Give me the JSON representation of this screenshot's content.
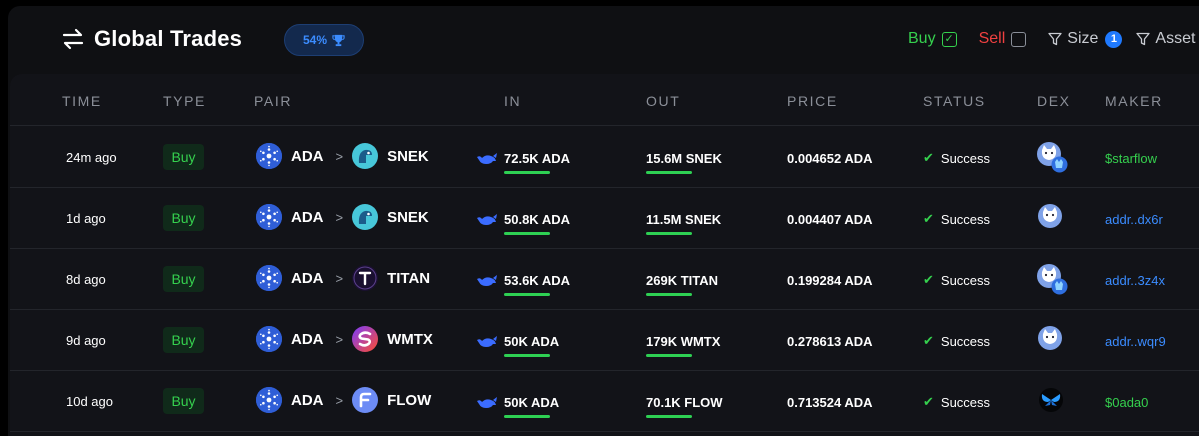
{
  "header": {
    "title": "Global Trades",
    "pill_label": "54%",
    "filters": {
      "buy_label": "Buy",
      "buy_checked": true,
      "sell_label": "Sell",
      "sell_checked": false,
      "size_label": "Size",
      "size_count": "1",
      "asset_label": "Asset"
    }
  },
  "columns": [
    "TIME",
    "TYPE",
    "PAIR",
    "IN",
    "OUT",
    "PRICE",
    "STATUS",
    "DEX",
    "MAKER"
  ],
  "rows": [
    {
      "time": "24m ago",
      "type": "Buy",
      "from": "ADA",
      "to": "SNEK",
      "in": "72.5K ADA",
      "out": "15.6M SNEK",
      "price": "0.004652 ADA",
      "status": "Success",
      "dex": "cat-dex-multi-icon",
      "maker": "$starflow",
      "maker_color": "#35d04e"
    },
    {
      "time": "1d ago",
      "type": "Buy",
      "from": "ADA",
      "to": "SNEK",
      "in": "50.8K ADA",
      "out": "11.5M SNEK",
      "price": "0.004407 ADA",
      "status": "Success",
      "dex": "cat-dex-icon",
      "maker": "addr..dx6r",
      "maker_color": "#3b8cff"
    },
    {
      "time": "8d ago",
      "type": "Buy",
      "from": "ADA",
      "to": "TITAN",
      "in": "53.6K ADA",
      "out": "269K TITAN",
      "price": "0.199284 ADA",
      "status": "Success",
      "dex": "cat-dex-multi-icon",
      "maker": "addr..3z4x",
      "maker_color": "#3b8cff"
    },
    {
      "time": "9d ago",
      "type": "Buy",
      "from": "ADA",
      "to": "WMTX",
      "in": "50K ADA",
      "out": "179K WMTX",
      "price": "0.278613 ADA",
      "status": "Success",
      "dex": "cat-dex-icon",
      "maker": "addr..wqr9",
      "maker_color": "#3b8cff"
    },
    {
      "time": "10d ago",
      "type": "Buy",
      "from": "ADA",
      "to": "FLOW",
      "in": "50K ADA",
      "out": "70.1K FLOW",
      "price": "0.713524 ADA",
      "status": "Success",
      "dex": "butterfly-dex-icon",
      "maker": "$0ada0",
      "maker_color": "#35d04e"
    }
  ]
}
